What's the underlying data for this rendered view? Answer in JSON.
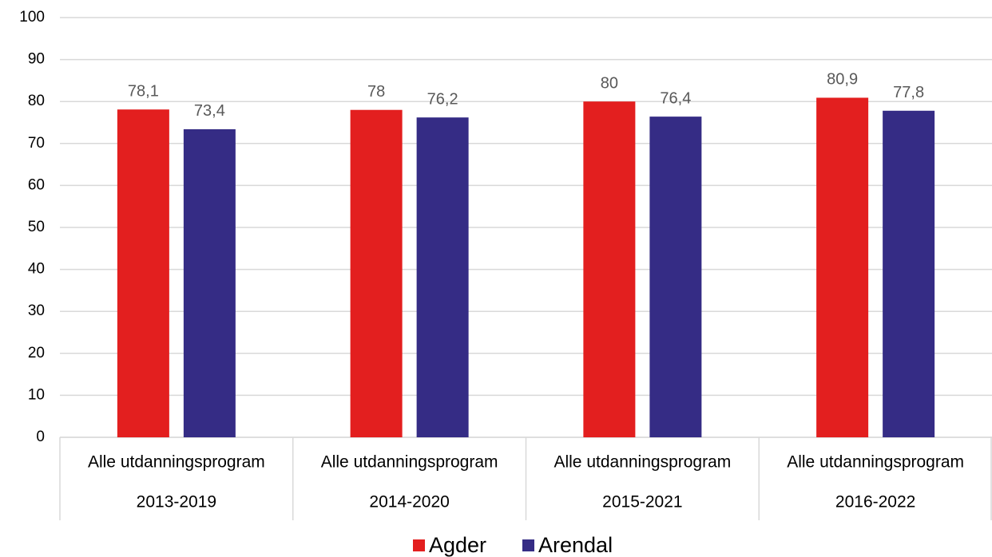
{
  "chart_data": {
    "type": "bar",
    "categories": [
      "Alle utdanningsprogram",
      "Alle utdanningsprogram",
      "Alle utdanningsprogram",
      "Alle utdanningsprogram"
    ],
    "category_groups": [
      "2013-2019",
      "2014-2020",
      "2015-2021",
      "2016-2022"
    ],
    "series": [
      {
        "name": "Agder",
        "color": "#e31f1f",
        "values": [
          78.1,
          78,
          80,
          80.9
        ],
        "value_labels": [
          "78,1",
          "78",
          "80",
          "80,9"
        ]
      },
      {
        "name": "Arendal",
        "color": "#352c85",
        "values": [
          73.4,
          76.2,
          76.4,
          77.8
        ],
        "value_labels": [
          "73,4",
          "76,2",
          "76,4",
          "77,8"
        ]
      }
    ],
    "ylim": [
      0,
      100
    ],
    "yticks": [
      0,
      10,
      20,
      30,
      40,
      50,
      60,
      70,
      80,
      90,
      100
    ],
    "grid": true,
    "legend": "bottom"
  }
}
